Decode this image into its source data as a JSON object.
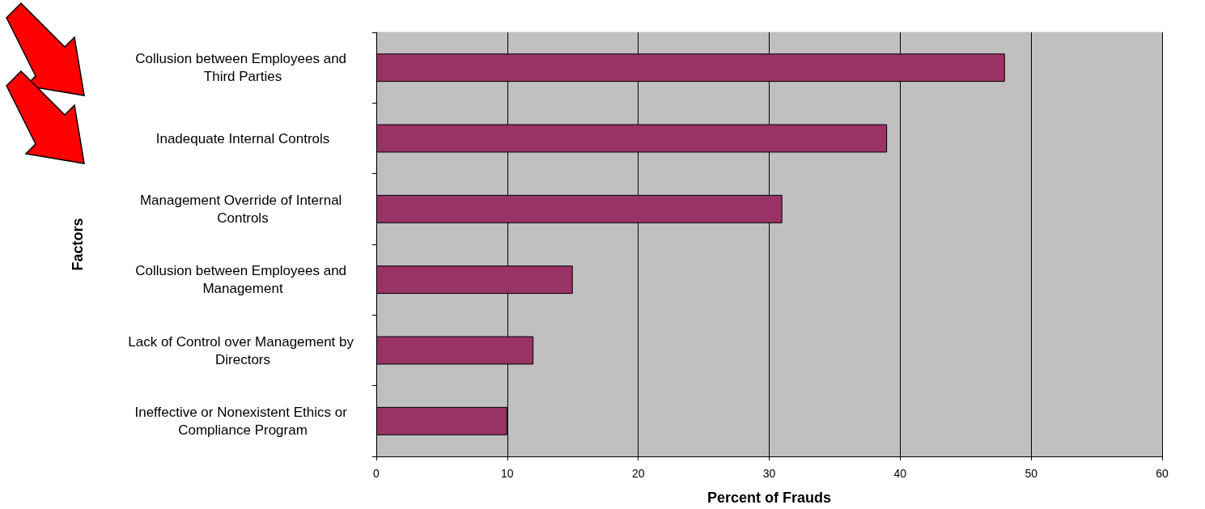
{
  "chart_data": {
    "type": "bar",
    "orientation": "horizontal",
    "xlabel": "Percent of Frauds",
    "ylabel": "Factors",
    "categories": [
      "Collusion between Employees and Third Parties",
      "Inadequate Internal Controls",
      "Management Override of Internal Controls",
      "Collusion between Employees and Management",
      "Lack of Control over Management by Directors",
      "Ineffective or Nonexistent Ethics or Compliance Program"
    ],
    "values": [
      48,
      39,
      31,
      15,
      12,
      10
    ],
    "color": "#993366",
    "xlim": [
      0,
      60
    ],
    "xticks": [
      0,
      10,
      20,
      30,
      40,
      50,
      60
    ],
    "grid": "x"
  }
}
